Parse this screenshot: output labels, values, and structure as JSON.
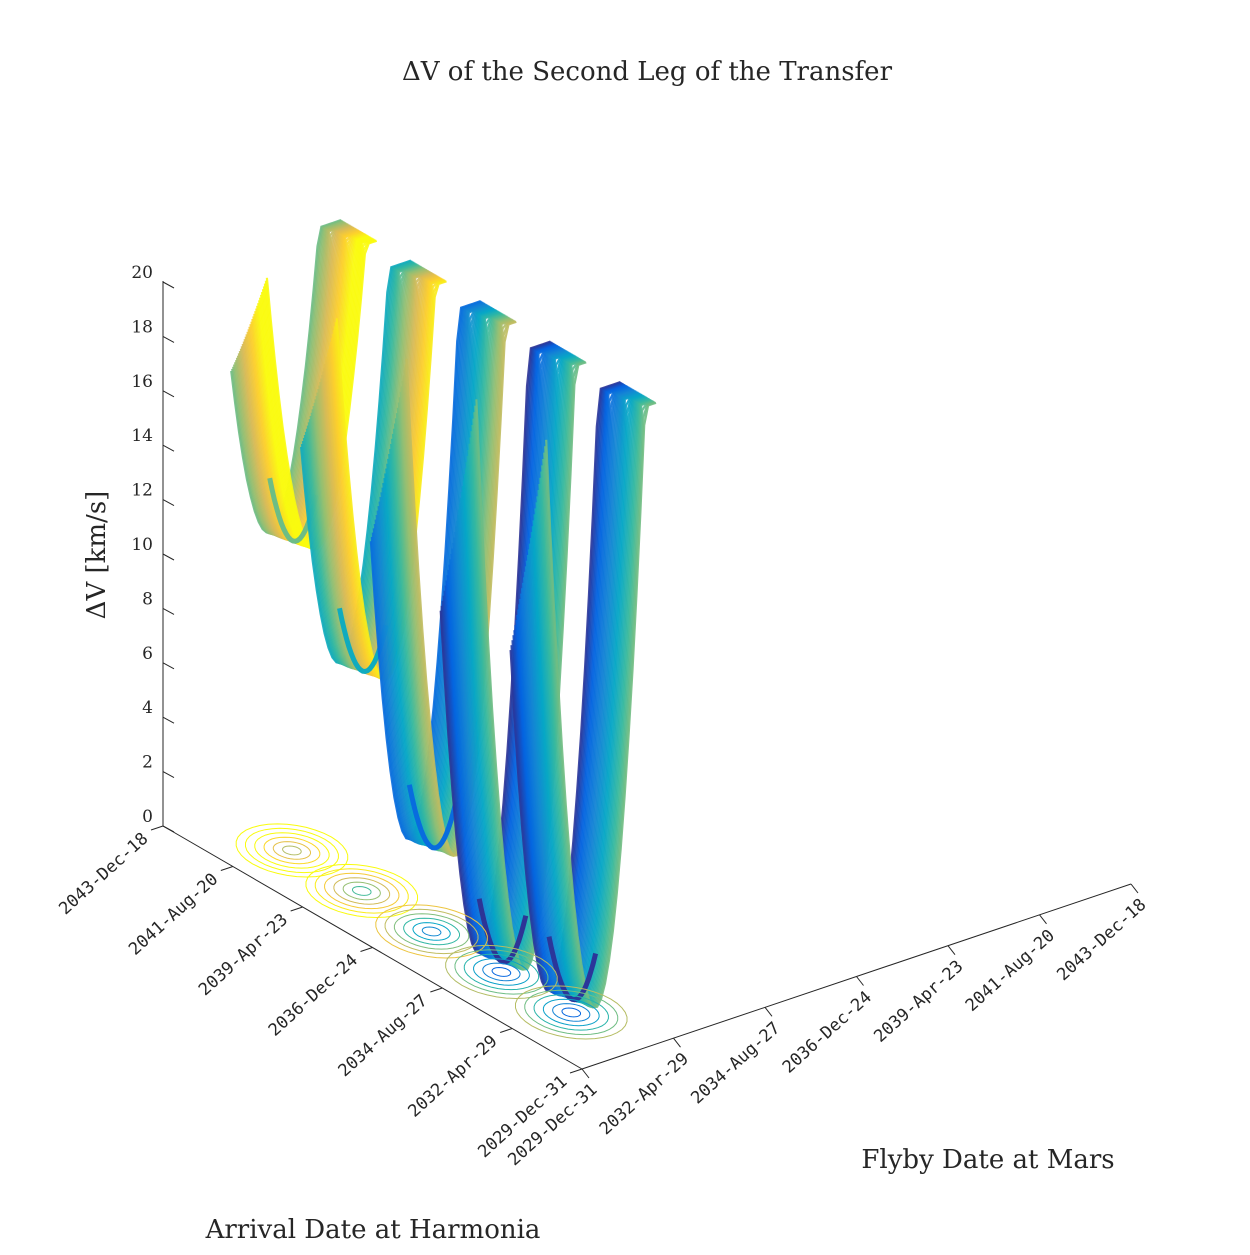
{
  "chart_data": {
    "type": "surface",
    "title": "ΔV of the Second Leg of the Transfer",
    "xlabel": "Flyby Date at Mars",
    "ylabel": "Arrival Date at Harmonia",
    "zlabel": "ΔV [km/s]",
    "x_ticks": [
      "2029-Dec-31",
      "2032-Apr-29",
      "2034-Aug-27",
      "2036-Dec-24",
      "2039-Apr-23",
      "2041-Aug-20",
      "2043-Dec-18"
    ],
    "y_ticks": [
      "2029-Dec-31",
      "2032-Apr-29",
      "2034-Aug-27",
      "2036-Dec-24",
      "2039-Apr-23",
      "2041-Aug-20",
      "2043-Dec-18"
    ],
    "z_ticks": [
      0,
      2,
      4,
      6,
      8,
      10,
      12,
      14,
      16,
      18,
      20
    ],
    "zlim": [
      0,
      20
    ],
    "colormap": "parula",
    "has_contour_projection": true,
    "grid": false,
    "valleys": [
      {
        "y_tick": "2041-Aug-20",
        "min_dv": 11.4
      },
      {
        "y_tick": "2039-Apr-23",
        "min_dv": 8.1
      },
      {
        "y_tick": "2036-Dec-24",
        "min_dv": 3.1
      },
      {
        "y_tick": "2034-Aug-27",
        "min_dv": 0.4
      },
      {
        "y_tick": "2032-Apr-29",
        "min_dv": 0.5
      }
    ]
  }
}
